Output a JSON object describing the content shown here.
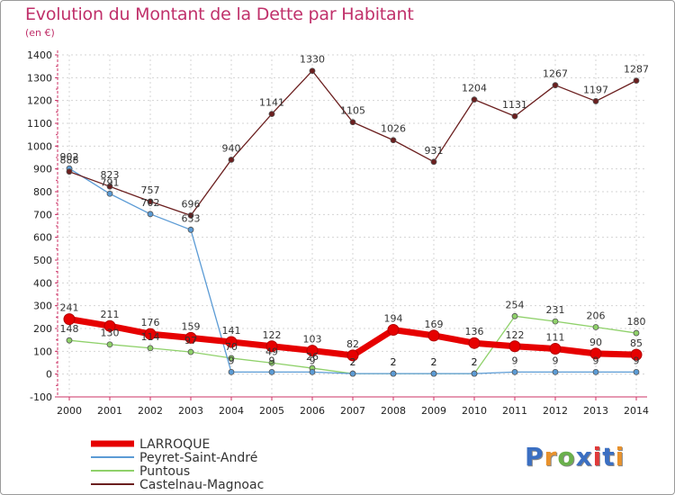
{
  "title": "Evolution du Montant de la Dette par Habitant",
  "subtitle": "(en €)",
  "logo": {
    "text": "Proxiti",
    "colors": [
      "#3b6fc2",
      "#e8922d",
      "#6ab04c",
      "#3b6fc2",
      "#e03a3a",
      "#3b6fc2",
      "#e8922d"
    ]
  },
  "chart_data": {
    "type": "line",
    "title": "Evolution du Montant de la Dette par Habitant",
    "ylabel": "(en €)",
    "xlabel": "",
    "ylim": [
      -100,
      1400
    ],
    "yticks": [
      -100,
      0,
      100,
      200,
      300,
      400,
      500,
      600,
      700,
      800,
      900,
      1000,
      1100,
      1200,
      1300,
      1400
    ],
    "grid": true,
    "legend_position": "bottom-left",
    "categories": [
      "2000",
      "2001",
      "2002",
      "2003",
      "2004",
      "2005",
      "2006",
      "2007",
      "2008",
      "2009",
      "2010",
      "2011",
      "2012",
      "2013",
      "2014"
    ],
    "series": [
      {
        "name": "LARROQUE",
        "color": "#e60000",
        "values": [
          241,
          211,
          176,
          159,
          141,
          122,
          103,
          82,
          194,
          169,
          136,
          122,
          111,
          90,
          85
        ],
        "labels": [
          "241",
          "211",
          "176",
          "159",
          "141",
          "122",
          "103",
          "82",
          "194",
          "169",
          "136",
          "122",
          "111",
          "90",
          "85"
        ]
      },
      {
        "name": "Peyret-Saint-André",
        "color": "#5b9bd5",
        "values": [
          902,
          791,
          702,
          633,
          9,
          9,
          9,
          2,
          2,
          2,
          2,
          9,
          9,
          9,
          9
        ],
        "labels": [
          "902",
          "791",
          "702",
          "633",
          "9",
          "9",
          "9",
          "2",
          "2",
          "2",
          "2",
          "9",
          "9",
          "9",
          "9"
        ]
      },
      {
        "name": "Puntous",
        "color": "#8fd16a",
        "values": [
          148,
          130,
          114,
          97,
          70,
          49,
          26,
          2,
          2,
          2,
          2,
          254,
          231,
          206,
          180
        ],
        "labels": [
          "148",
          "130",
          "114",
          "97",
          "70",
          "49",
          "26",
          "2",
          "2",
          "2",
          "2",
          "254",
          "231",
          "206",
          "180"
        ]
      },
      {
        "name": "Castelnau-Magnoac",
        "color": "#6b1f1f",
        "values": [
          888,
          823,
          757,
          696,
          940,
          1141,
          1330,
          1105,
          1026,
          931,
          1204,
          1131,
          1267,
          1197,
          1287
        ],
        "labels": [
          "888",
          "823",
          "757",
          "696",
          "940",
          "1141",
          "1330",
          "1105",
          "1026",
          "931",
          "1204",
          "1131",
          "1267",
          "1197",
          "1287"
        ]
      }
    ]
  }
}
